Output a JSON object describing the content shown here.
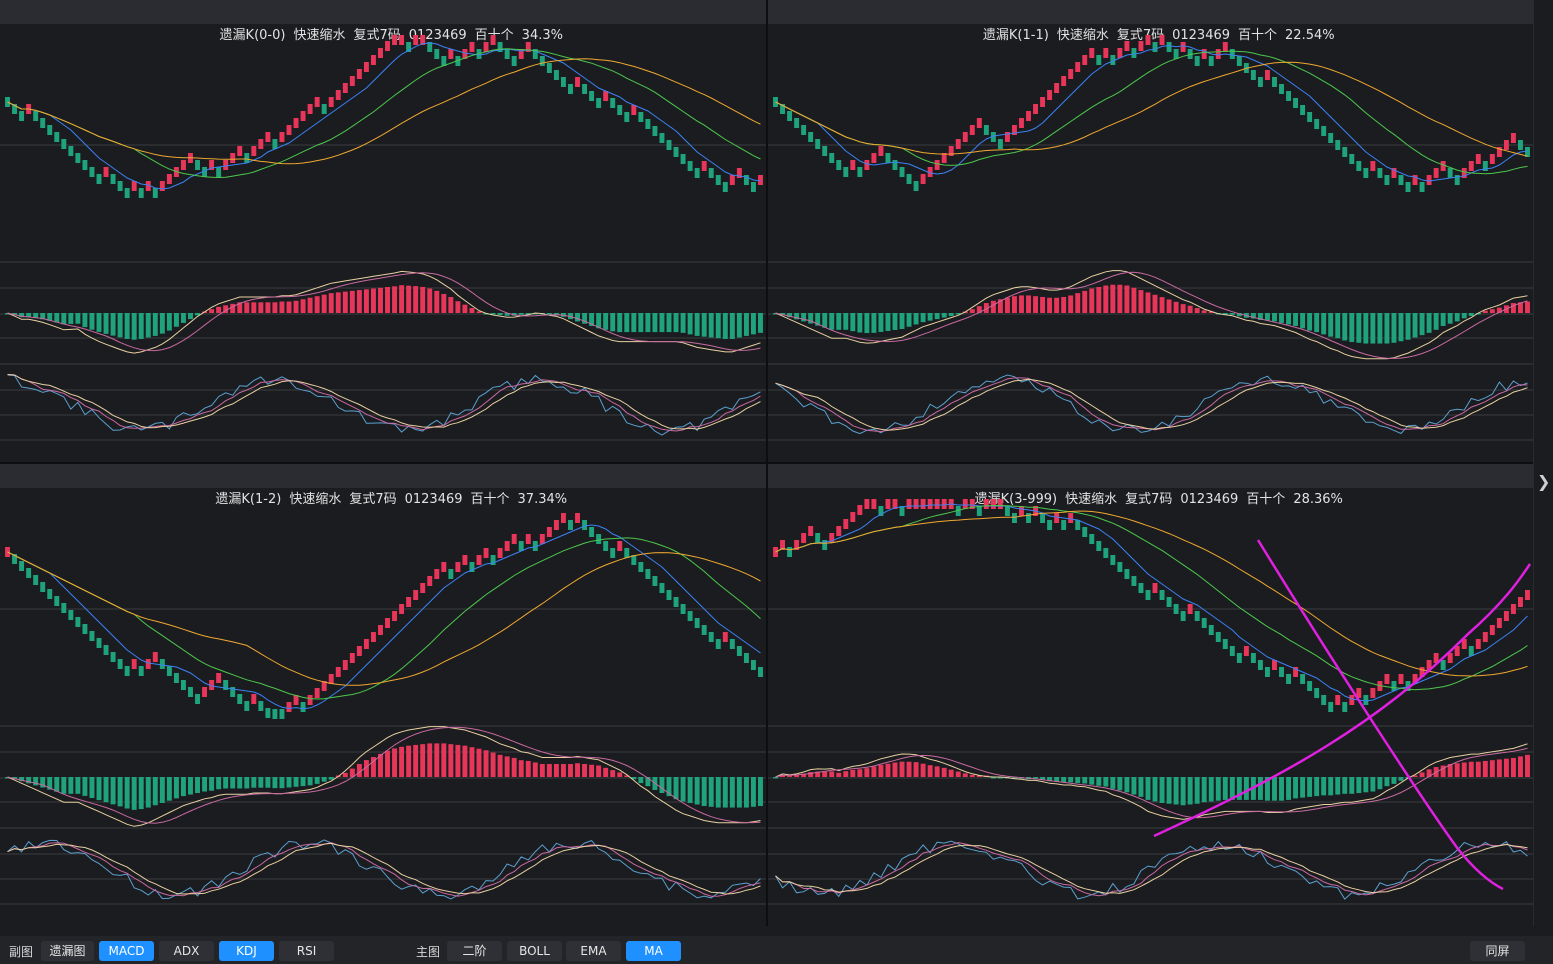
{
  "colors": {
    "up": "#e8365a",
    "down": "#1fa37d",
    "ma_fast": "#3b82f6",
    "ma_mid": "#4cc84c",
    "ma_slow": "#f0a830",
    "grid": "#3a3b40",
    "k": "#5aa0d0",
    "d": "#c86aa0",
    "j": "#e8d0a0",
    "draw": "#e020e0"
  },
  "panels": [
    {
      "id": "p00",
      "name": "遗漏K(0-0)",
      "mode": "快速缩水",
      "formula": "复式7码",
      "digits": "0123469",
      "positions": "百十个",
      "percent": "34.3%"
    },
    {
      "id": "p11",
      "name": "遗漏K(1-1)",
      "mode": "快速缩水",
      "formula": "复式7码",
      "digits": "0123469",
      "positions": "百十个",
      "percent": "22.54%"
    },
    {
      "id": "p12",
      "name": "遗漏K(1-2)",
      "mode": "快速缩水",
      "formula": "复式7码",
      "digits": "0123469",
      "positions": "百十个",
      "percent": "37.34%"
    },
    {
      "id": "p3999",
      "name": "遗漏K(3-999)",
      "mode": "快速缩水",
      "formula": "复式7码",
      "digits": "0123469",
      "positions": "百十个",
      "percent": "28.36%"
    }
  ],
  "toolbar": {
    "sub_label": "副图",
    "sub_buttons": [
      {
        "label": "遗漏图",
        "active": false
      },
      {
        "label": "MACD",
        "active": true
      },
      {
        "label": "ADX",
        "active": false
      },
      {
        "label": "KDJ",
        "active": true
      },
      {
        "label": "RSI",
        "active": false
      }
    ],
    "main_label": "主图",
    "main_buttons": [
      {
        "label": "二阶",
        "active": false
      },
      {
        "label": "BOLL",
        "active": false
      },
      {
        "label": "EMA",
        "active": false
      },
      {
        "label": "MA",
        "active": true
      }
    ],
    "same_screen": "同屏"
  },
  "side_arrow": "❯"
}
